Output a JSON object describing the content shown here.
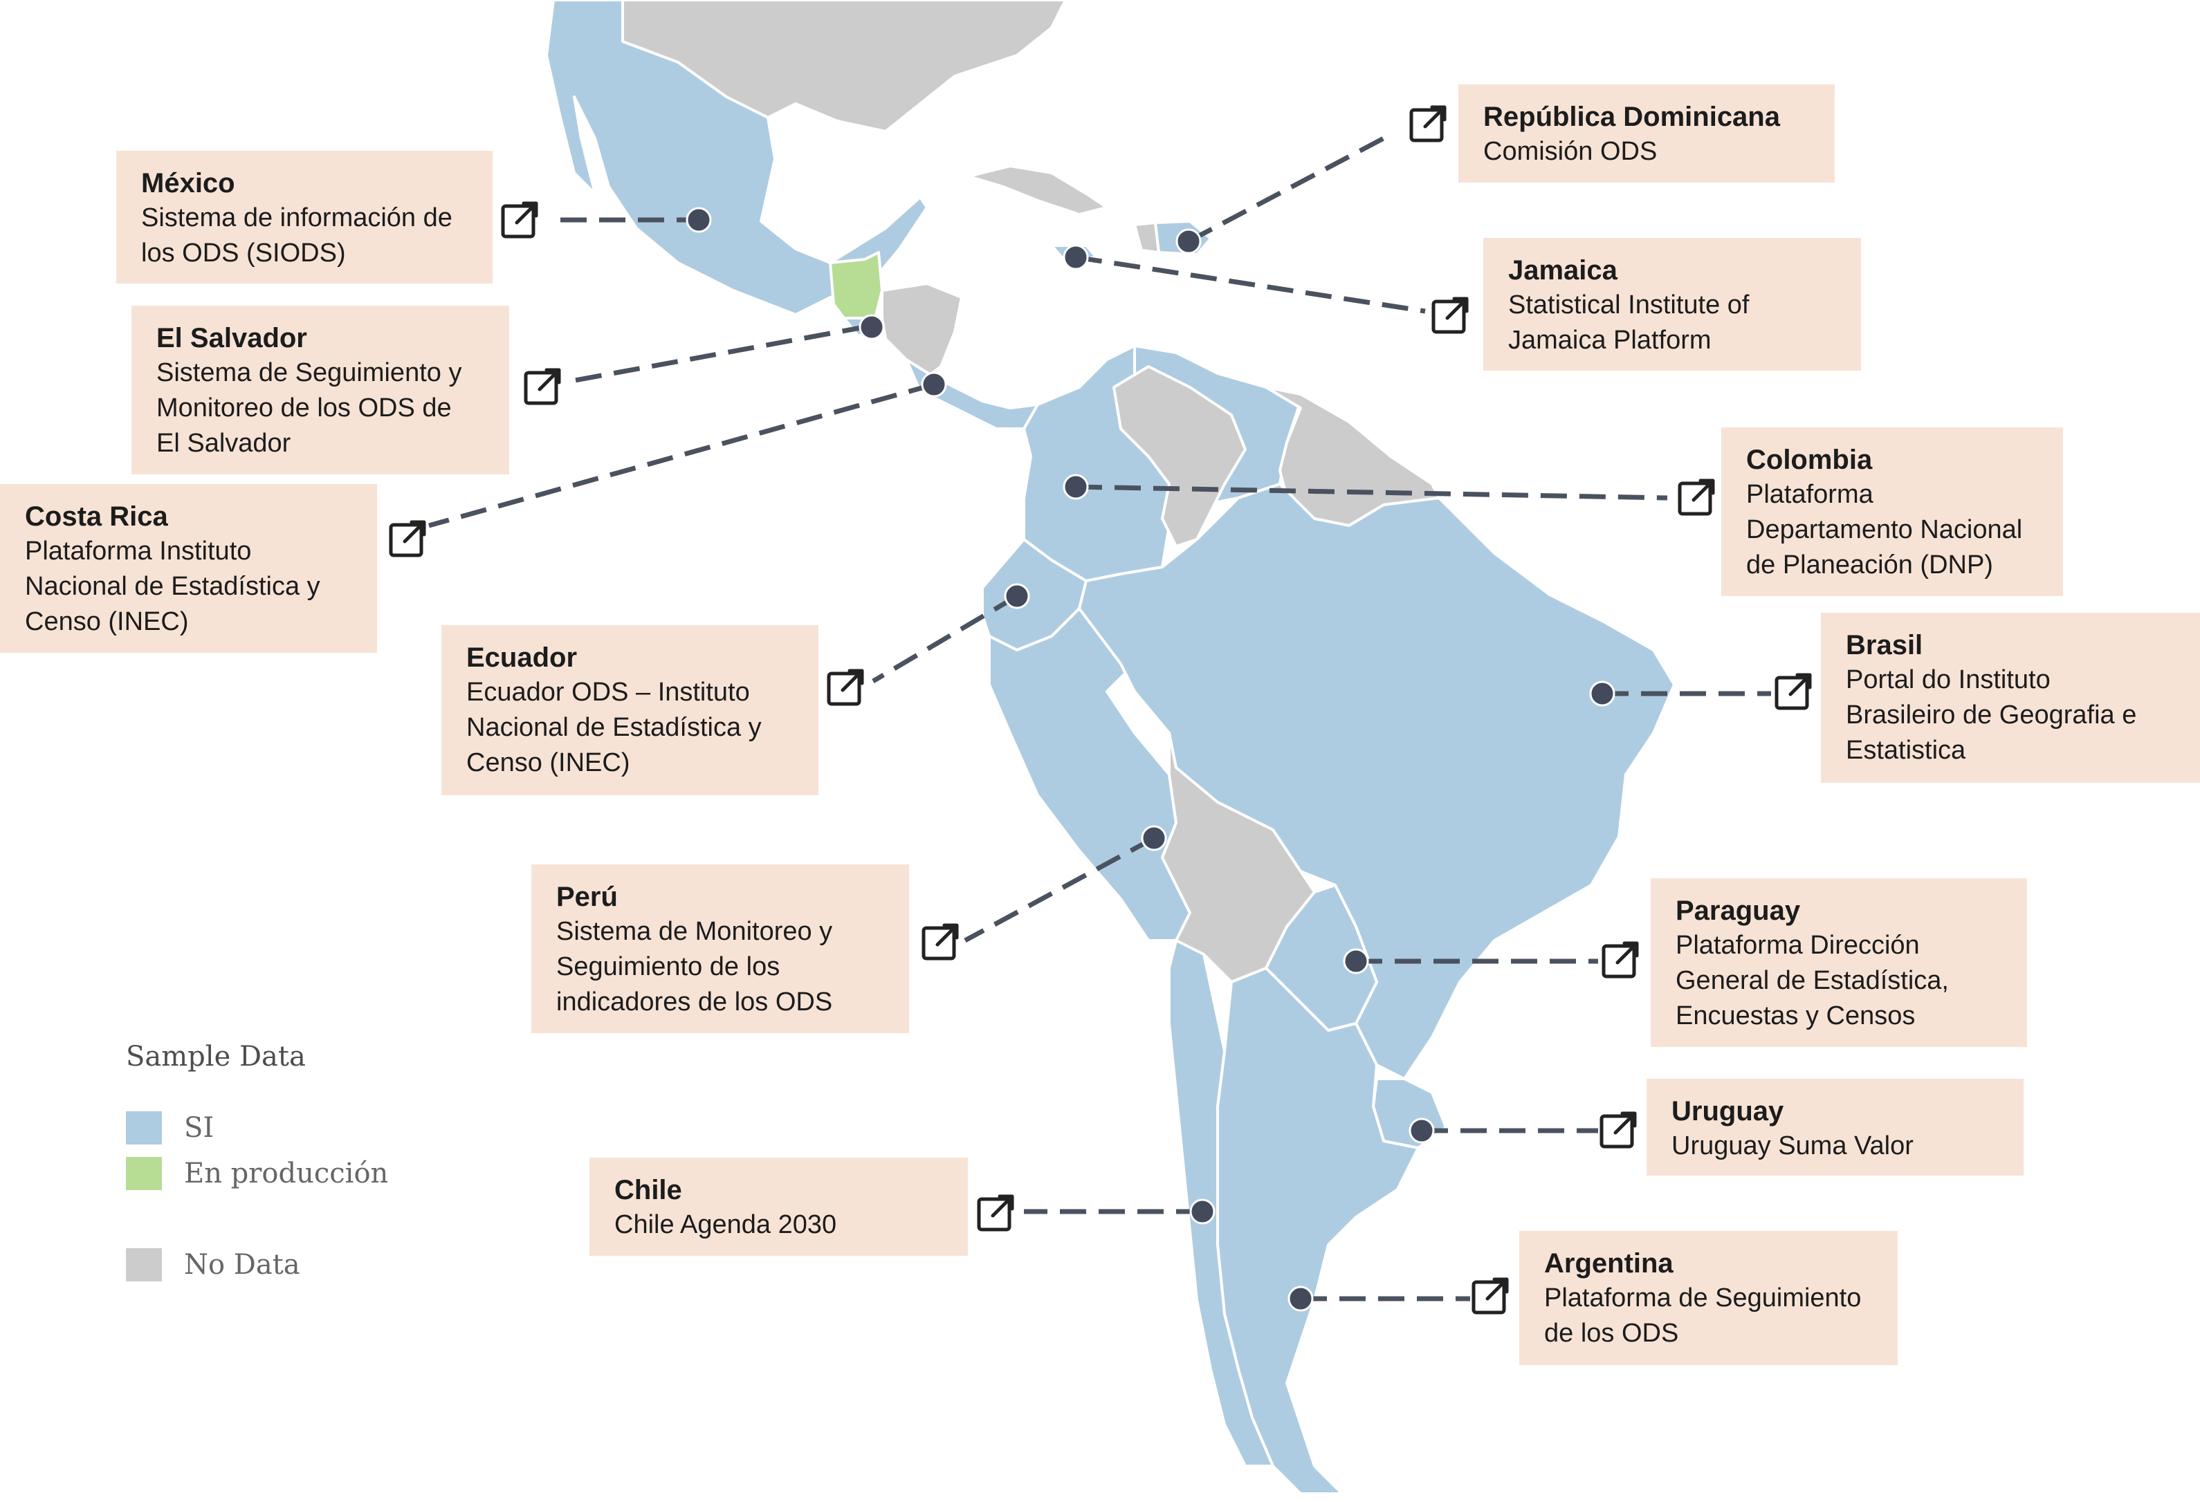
{
  "legend": {
    "title": "Sample Data",
    "items": [
      {
        "label": "SI",
        "color": "#aecce1"
      },
      {
        "label": "En producción",
        "color": "#b7dc94"
      },
      {
        "label": "No Data",
        "color": "#cccccc"
      }
    ]
  },
  "platforms": [
    {
      "country": "México",
      "platform": "Sistema de información de\nlos ODS (SIODS)",
      "status": "SI"
    },
    {
      "country": "El Salvador",
      "platform": "Sistema de Seguimiento y\nMonitoreo de los ODS de\nEl Salvador",
      "status": "SI"
    },
    {
      "country": "Costa Rica",
      "platform": "Plataforma Instituto\nNacional de Estadística y\nCenso (INEC)",
      "status": "SI"
    },
    {
      "country": "Ecuador",
      "platform": "Ecuador ODS – Instituto\nNacional de Estadística y\nCenso (INEC)",
      "status": "SI"
    },
    {
      "country": "Perú",
      "platform": "Sistema de Monitoreo y\nSeguimiento de los\nindicadores de los ODS",
      "status": "SI"
    },
    {
      "country": "Chile",
      "platform": "Chile Agenda 2030",
      "status": "SI"
    },
    {
      "country": "República Dominicana",
      "platform": "Comisión ODS",
      "status": "SI"
    },
    {
      "country": "Jamaica",
      "platform": "Statistical Institute of\nJamaica Platform",
      "status": "SI"
    },
    {
      "country": "Colombia",
      "platform": "Plataforma\nDepartamento Nacional\nde Planeación (DNP)",
      "status": "SI"
    },
    {
      "country": "Brasil",
      "platform": "Portal do Instituto\nBrasileiro de Geografia e\nEstatistica",
      "status": "SI"
    },
    {
      "country": "Paraguay",
      "platform": "Plataforma Dirección\nGeneral de Estadística,\nEncuestas y Censos",
      "status": "SI"
    },
    {
      "country": "Uruguay",
      "platform": "Uruguay Suma Valor",
      "status": "SI"
    },
    {
      "country": "Argentina",
      "platform": "Plataforma de Seguimiento\nde los ODS",
      "status": "SI"
    }
  ],
  "map_regions": {
    "si": [
      "Mexico",
      "Costa Rica",
      "Panama",
      "Colombia",
      "Ecuador",
      "Peru",
      "Brazil",
      "Paraguay",
      "Uruguay",
      "Argentina",
      "Chile",
      "Dominican Republic",
      "Jamaica",
      "El Salvador",
      "Venezuela"
    ],
    "en_produccion": [
      "Guatemala"
    ],
    "no_data": [
      "United States",
      "Honduras",
      "Nicaragua",
      "Cuba",
      "Haiti",
      "Guyana",
      "Suriname",
      "French Guiana",
      "Bolivia"
    ]
  },
  "icons": {
    "external_link": "external-link-icon",
    "marker": "location-dot"
  }
}
